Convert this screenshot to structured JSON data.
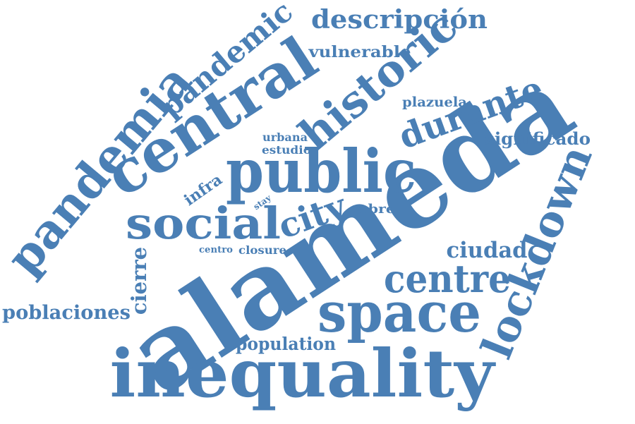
{
  "word_cloud": {
    "color": "#4a7fb5",
    "words": {
      "alameda": "alameda",
      "inequality": "inequality",
      "public": "public",
      "central": "central",
      "pandemia": "pandemia",
      "space": "space",
      "lockdown": "lockdown",
      "social": "social",
      "city": "city",
      "historic": "historic",
      "centre": "centre",
      "durante": "durante",
      "pandemic": "pandemic",
      "descripcion": "descripción",
      "vulnerable": "vulnerable",
      "poblaciones": "poblaciones",
      "ciudad": "ciudad",
      "significado": "significado",
      "population": "population",
      "cierre": "cierre",
      "plazuela": "plazuela",
      "infra": "infra",
      "urbana": "urbana",
      "estudio": "estudio",
      "sobre": "sobre",
      "closure": "closure",
      "centro": "centro",
      "stay": "stay"
    }
  }
}
